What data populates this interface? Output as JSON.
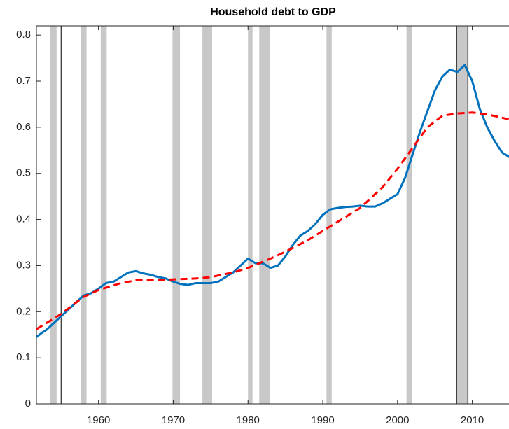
{
  "chart_data": {
    "type": "line",
    "title": "Household debt to GDP",
    "xlim": [
      1951.7,
      2015.0
    ],
    "ylim": [
      0,
      0.82
    ],
    "xticks": [
      1960,
      1970,
      1980,
      1990,
      2000,
      2010
    ],
    "yticks": [
      0,
      0.1,
      0.2,
      0.3,
      0.4,
      0.5,
      0.6,
      0.7,
      0.8
    ],
    "shaded_periods": [
      [
        1953.5,
        1954.4
      ],
      [
        1957.6,
        1958.4
      ],
      [
        1960.3,
        1961.1
      ],
      [
        1969.9,
        1970.9
      ],
      [
        1973.9,
        1975.2
      ],
      [
        1980.0,
        1980.6
      ],
      [
        1981.5,
        1982.9
      ],
      [
        1990.5,
        1991.2
      ],
      [
        2001.2,
        2001.9
      ],
      [
        2007.9,
        2009.5
      ]
    ],
    "shade_color": "#c8c8c8",
    "vlines": [
      1955.0,
      2007.9,
      2009.4
    ],
    "series": [
      {
        "color": "#0072bd",
        "dashed": false,
        "x": [
          1951.7,
          1952.5,
          1953,
          1954,
          1955,
          1956,
          1957,
          1958,
          1959,
          1960,
          1961,
          1962,
          1963,
          1964,
          1965,
          1966,
          1967,
          1968,
          1969,
          1970,
          1971,
          1972,
          1973,
          1974,
          1975,
          1976,
          1977,
          1978,
          1979,
          1980,
          1981,
          1982,
          1983,
          1984,
          1985,
          1986,
          1987,
          1988,
          1989,
          1990,
          1991,
          1992,
          1993,
          1994,
          1995,
          1996,
          1997,
          1998,
          1999,
          2000,
          2001,
          2002,
          2003,
          2004,
          2005,
          2006,
          2007,
          2008,
          2009,
          2010,
          2011,
          2012,
          2013,
          2014,
          2015
        ],
        "values": [
          0.145,
          0.155,
          0.16,
          0.175,
          0.19,
          0.205,
          0.22,
          0.235,
          0.24,
          0.25,
          0.262,
          0.265,
          0.275,
          0.285,
          0.288,
          0.283,
          0.28,
          0.275,
          0.272,
          0.265,
          0.26,
          0.258,
          0.262,
          0.262,
          0.262,
          0.265,
          0.275,
          0.285,
          0.3,
          0.315,
          0.305,
          0.305,
          0.295,
          0.3,
          0.32,
          0.345,
          0.365,
          0.375,
          0.39,
          0.41,
          0.422,
          0.425,
          0.427,
          0.428,
          0.43,
          0.428,
          0.428,
          0.435,
          0.445,
          0.455,
          0.49,
          0.54,
          0.59,
          0.635,
          0.68,
          0.71,
          0.725,
          0.72,
          0.735,
          0.7,
          0.64,
          0.6,
          0.57,
          0.545,
          0.535
        ]
      },
      {
        "color": "#ff0000",
        "dashed": true,
        "x": [
          1951.7,
          1955,
          1958,
          1960,
          1963,
          1965,
          1968,
          1970,
          1973,
          1975,
          1978,
          1980,
          1983,
          1985,
          1988,
          1990,
          1993,
          1995,
          1998,
          2000,
          2002,
          2004,
          2006,
          2008,
          2010,
          2012,
          2015
        ],
        "values": [
          0.162,
          0.195,
          0.232,
          0.247,
          0.262,
          0.268,
          0.268,
          0.27,
          0.272,
          0.275,
          0.285,
          0.295,
          0.315,
          0.33,
          0.355,
          0.375,
          0.405,
          0.425,
          0.47,
          0.51,
          0.555,
          0.6,
          0.625,
          0.63,
          0.632,
          0.628,
          0.617
        ]
      }
    ]
  }
}
